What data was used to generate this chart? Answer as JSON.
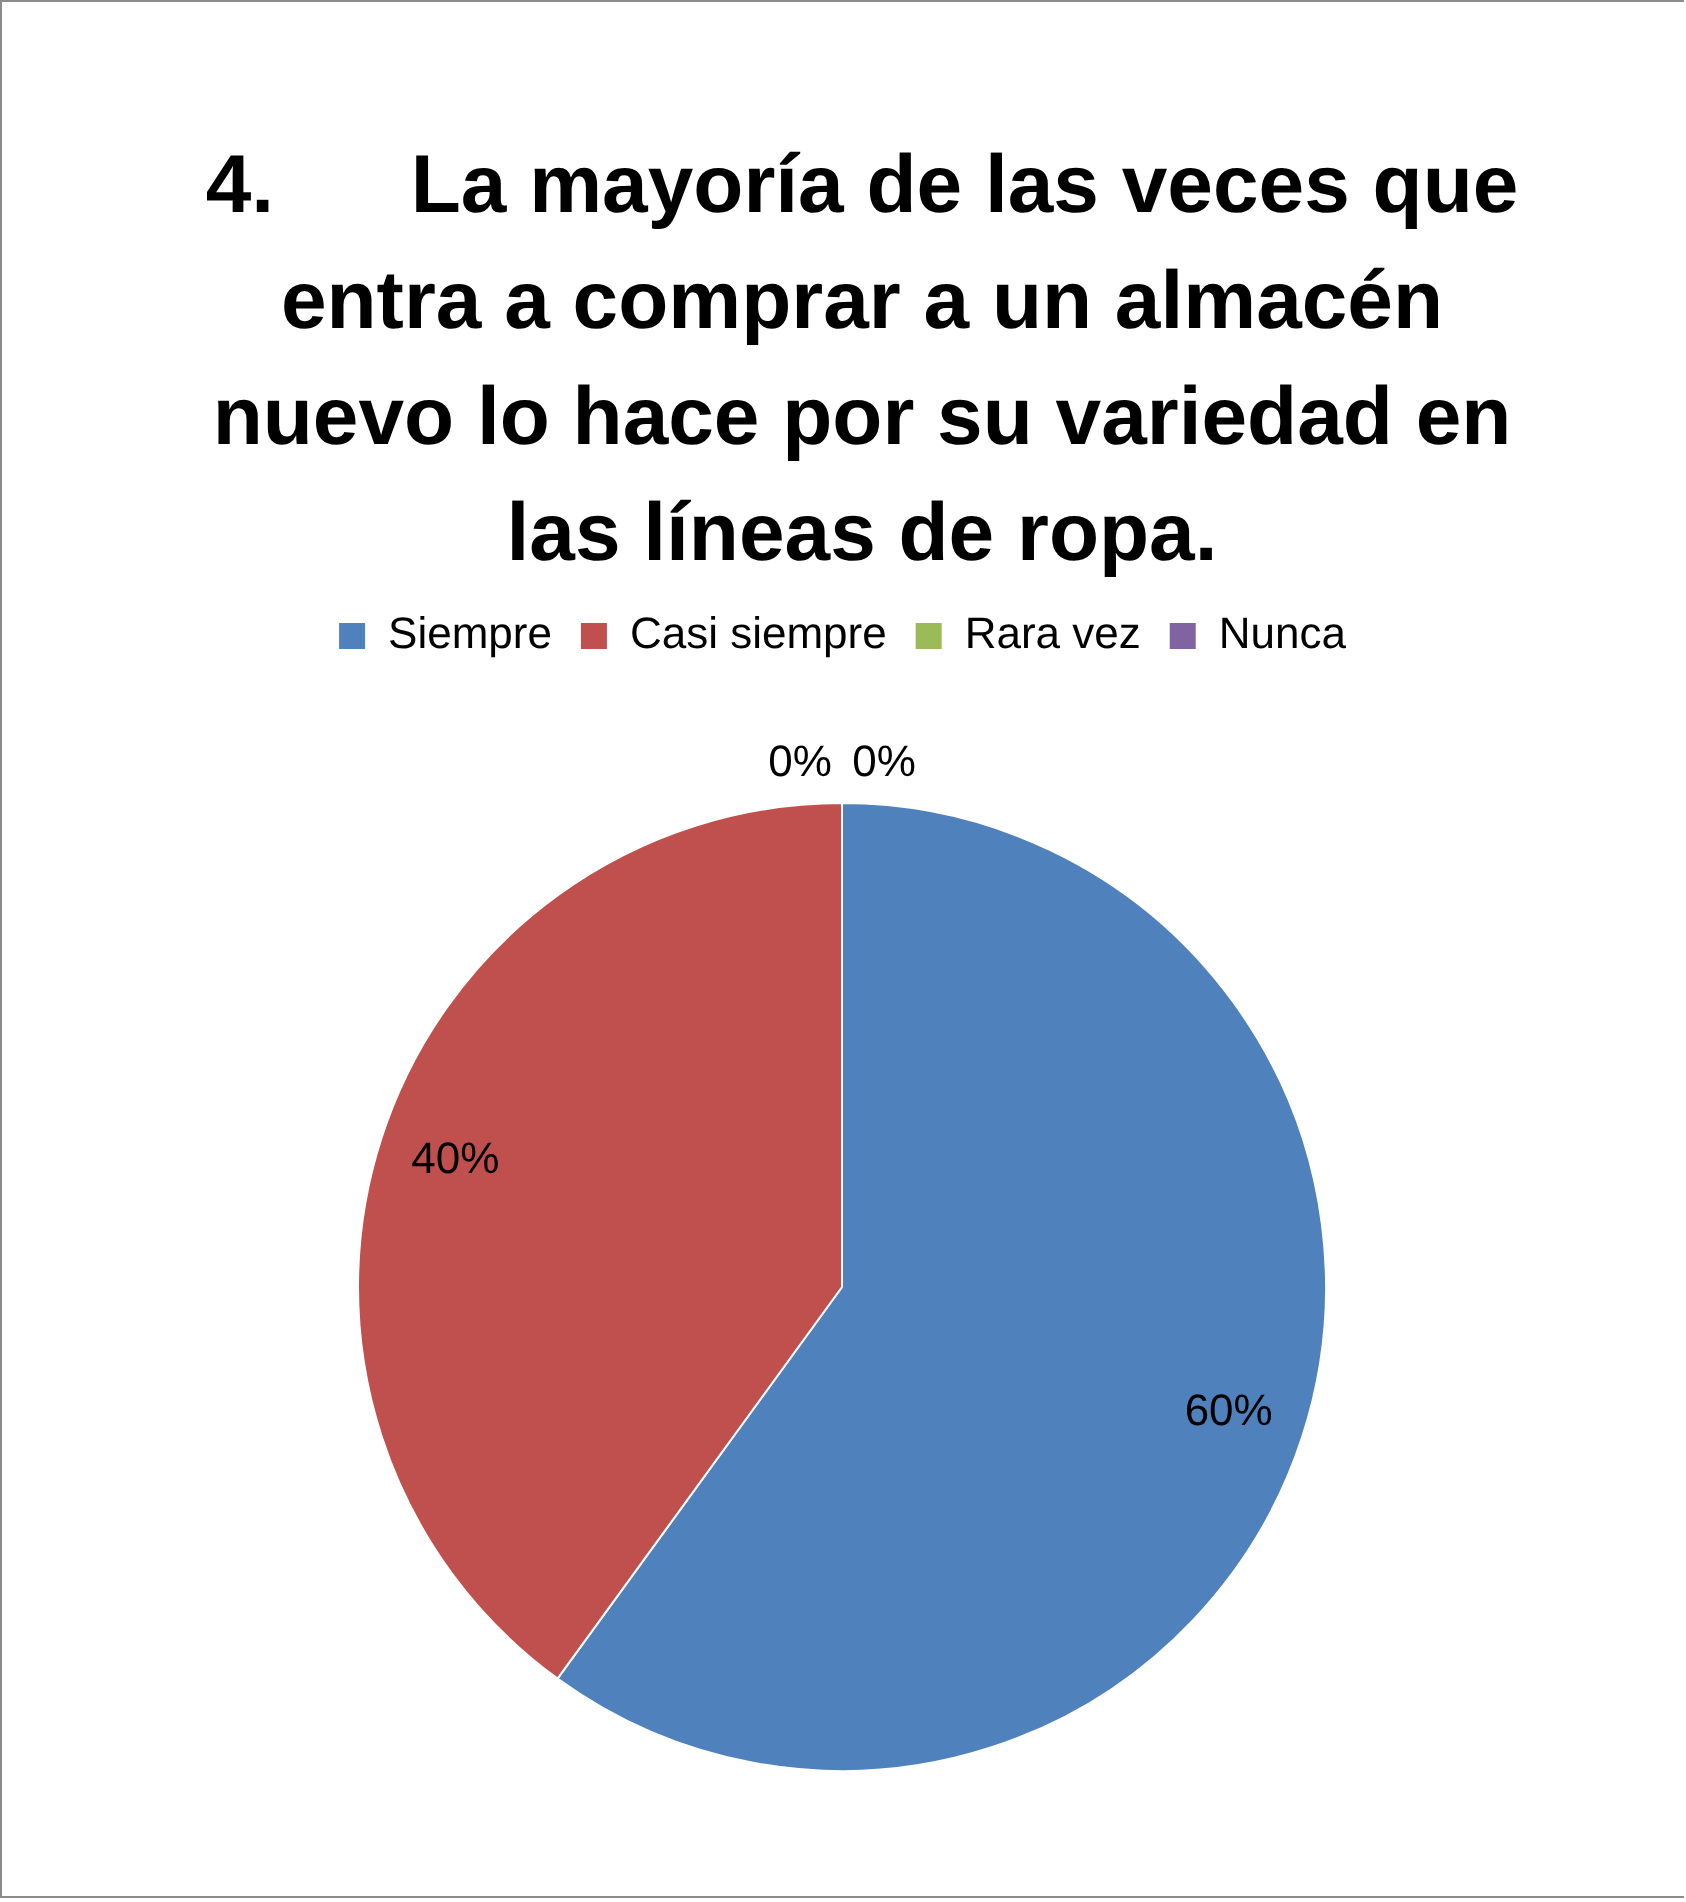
{
  "chart_data": {
    "type": "pie",
    "title": "4.      La mayoría de las veces que entra a comprar a un almacén nuevo lo hace por su variedad en las líneas de ropa.",
    "categories": [
      "Siempre",
      "Casi siempre",
      "Rara vez",
      "Nunca"
    ],
    "values": [
      60,
      40,
      0,
      0
    ],
    "colors": [
      "#4f81bd",
      "#c0504d",
      "#9bbb59",
      "#8064a2"
    ],
    "value_labels": [
      "60%",
      "40%",
      "0%",
      "0%"
    ],
    "legend": "top"
  }
}
